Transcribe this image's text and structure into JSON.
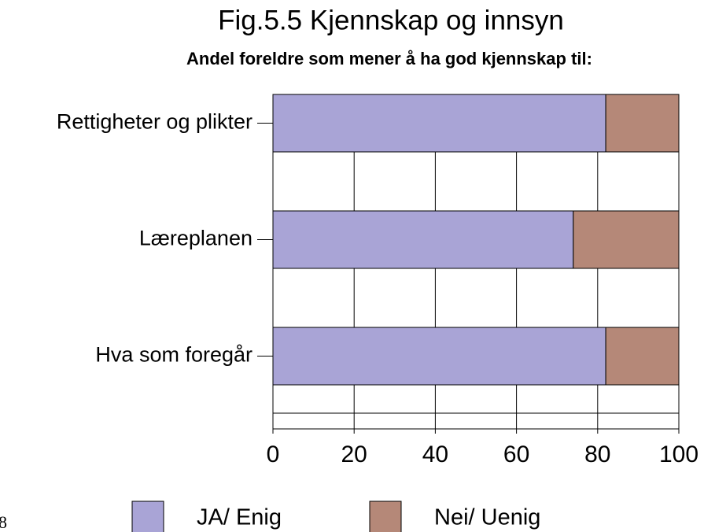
{
  "chart_data": {
    "type": "stacked-barh",
    "title": "Fig.5.5 Kjennskap og innsyn",
    "subtitle": "Andel foreldre som mener å ha god kjennskap til:",
    "categories": [
      "Rettigheter og plikter",
      "Læreplanen",
      "Hva som foregår"
    ],
    "series": [
      {
        "name": "JA/ Enig",
        "color": "#a9a4d6",
        "values": [
          82,
          74,
          82
        ]
      },
      {
        "name": "Nei/ Uenig",
        "color": "#b58878",
        "values": [
          18,
          26,
          18
        ]
      }
    ],
    "xlim": [
      0,
      100
    ],
    "xticks": [
      0,
      20,
      40,
      60,
      80,
      100
    ],
    "grid": true,
    "legend": "bottom"
  },
  "page_number": "8"
}
